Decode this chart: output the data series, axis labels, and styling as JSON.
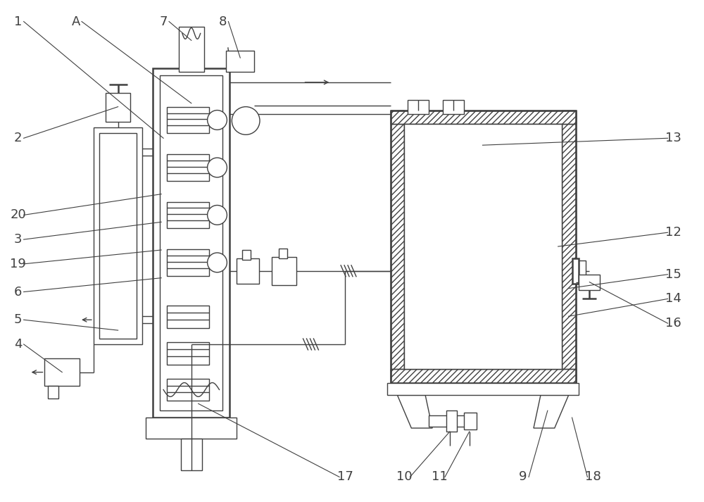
{
  "bg_color": "#ffffff",
  "line_color": "#404040",
  "lw": 1.0,
  "lw2": 1.8,
  "fig_width": 10.0,
  "fig_height": 7.13
}
